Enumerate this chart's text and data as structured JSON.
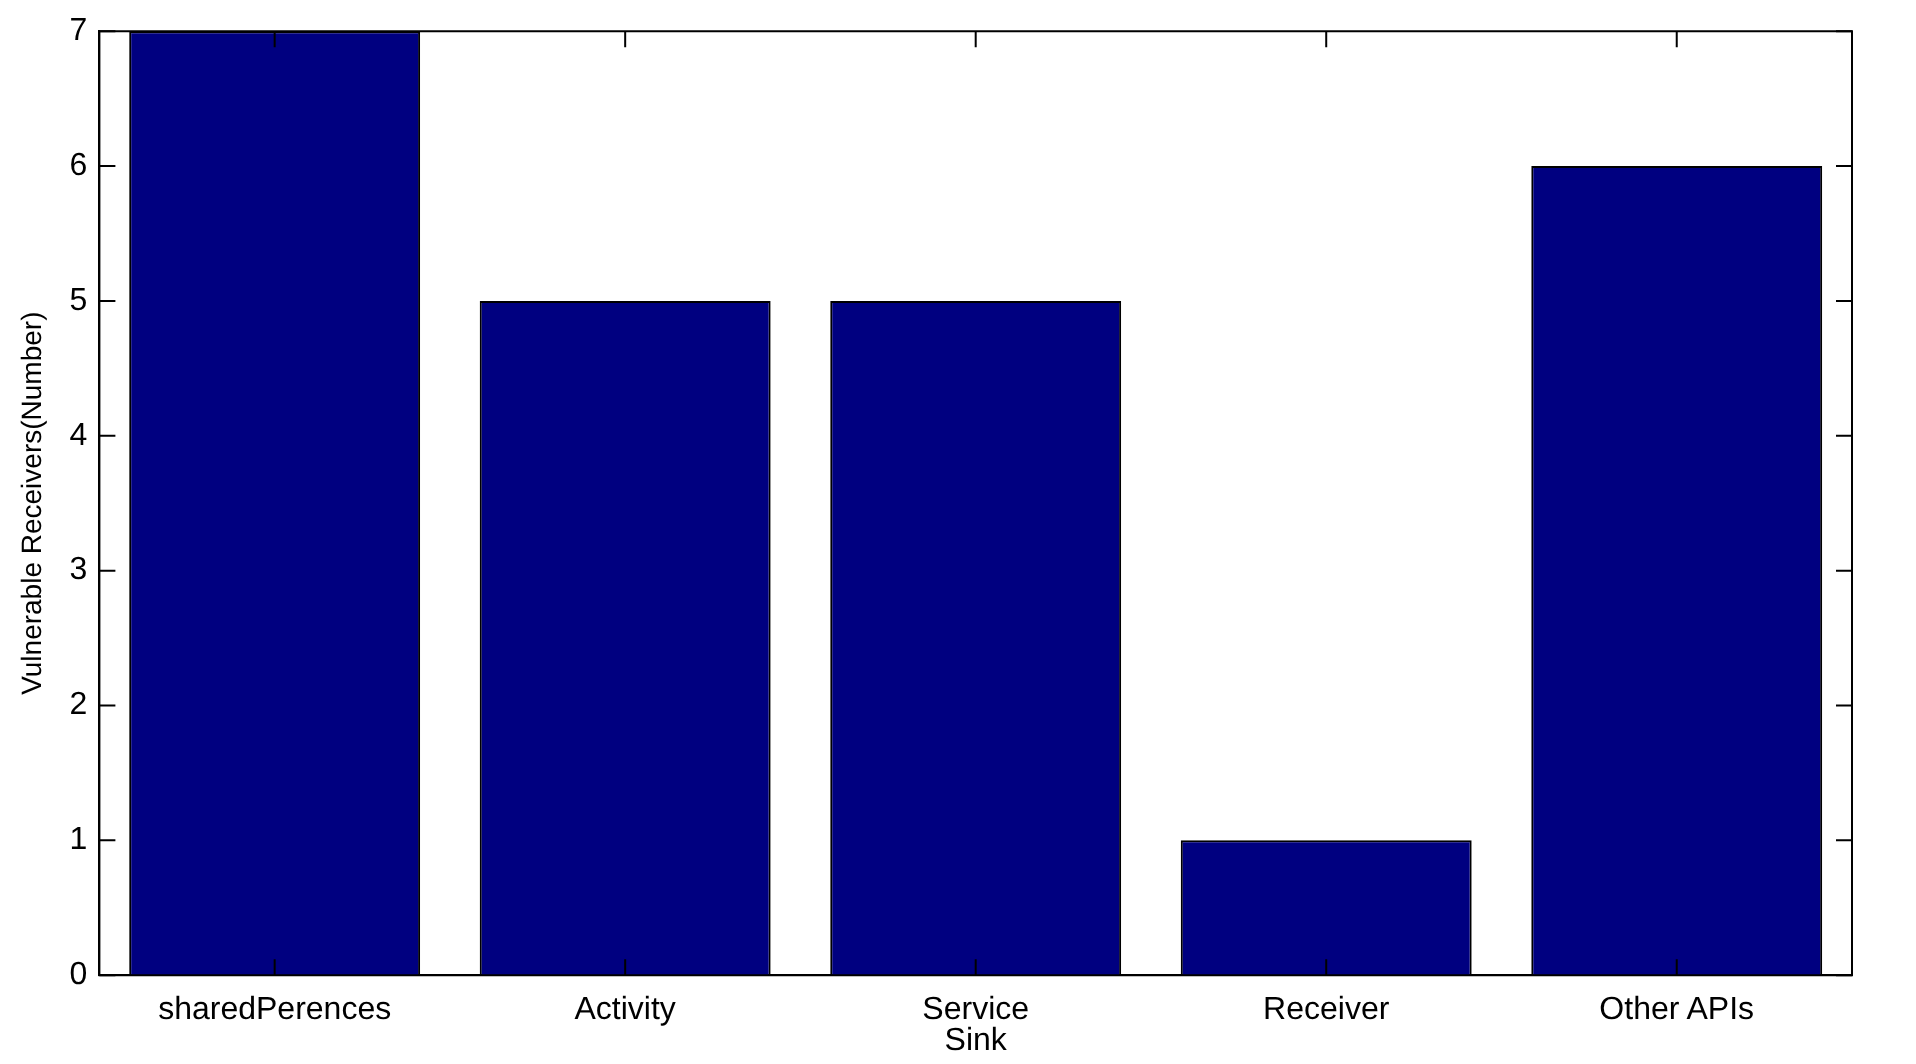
{
  "chart_data": {
    "type": "bar",
    "xlabel": "Sink",
    "ylabel": "Vulnerable Receivers(Number)",
    "categories": [
      "sharedPerences",
      "Activity",
      "Service",
      "Receiver",
      "Other APIs"
    ],
    "values": [
      7,
      5,
      5,
      1,
      6
    ],
    "color": "#000080",
    "ylim": [
      0,
      7
    ],
    "yticks": [
      0,
      1,
      2,
      3,
      4,
      5,
      6,
      7
    ]
  }
}
